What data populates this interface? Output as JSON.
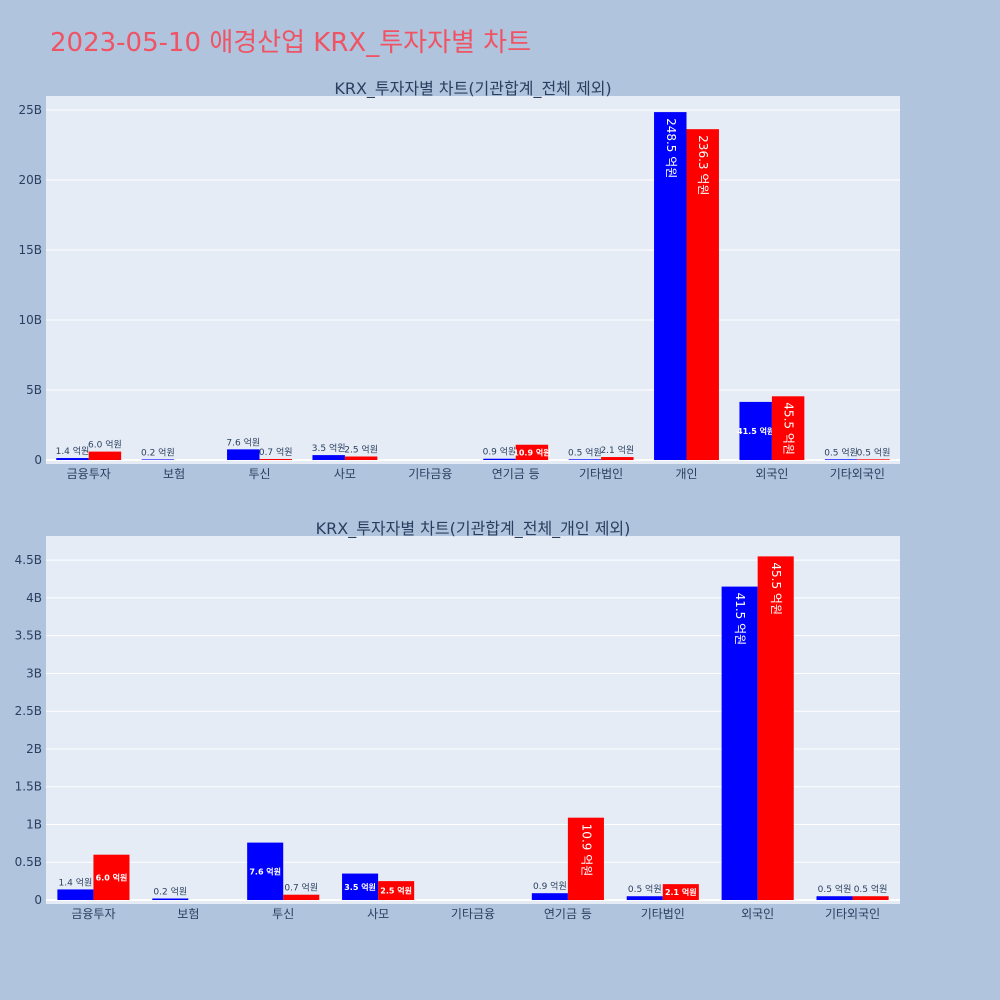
{
  "page_title": "2023-05-10 애경산업 KRX_투자자별 차트",
  "colors": {
    "sell": "#0000ff",
    "buy": "#ff0000",
    "plot_bg": "#e5ecf6",
    "page_bg": "#b0c4de",
    "title": "#ef5364"
  },
  "chart_data": [
    {
      "type": "bar",
      "title": "KRX_투자자별 차트(기관합계_전체 제외)",
      "categories": [
        "금융투자",
        "보험",
        "투신",
        "사모",
        "기타금융",
        "연기금 등",
        "기타법인",
        "개인",
        "외국인",
        "기타외국인"
      ],
      "series": [
        {
          "values": [
            0.14,
            0.02,
            0.76,
            0.35,
            null,
            0.09,
            0.05,
            24.85,
            4.15,
            0.05
          ],
          "labels": [
            "1.4 억원",
            "0.2 억원",
            "7.6 억원",
            "3.5 억원",
            "",
            "0.9 억원",
            "0.5 억원",
            "248.5 억원",
            "41.5 억원",
            "0.5 억원"
          ]
        },
        {
          "values": [
            0.6,
            null,
            0.07,
            0.25,
            null,
            1.09,
            0.21,
            23.63,
            4.55,
            0.05
          ],
          "labels": [
            "6.0 억원",
            "",
            "0.7 억원",
            "2.5 억원",
            "",
            "10.9 억원",
            "2.1 억원",
            "236.3 억원",
            "45.5 억원",
            "0.5 억원"
          ]
        }
      ],
      "yticks": [
        0,
        5,
        10,
        15,
        20,
        25
      ],
      "ytick_labels": [
        "0",
        "5B",
        "10B",
        "15B",
        "20B",
        "25B"
      ],
      "ylim": [
        0,
        26
      ],
      "grid": true
    },
    {
      "type": "bar",
      "title": "KRX_투자자별 차트(기관합계_전체_개인 제외)",
      "categories": [
        "금융투자",
        "보험",
        "투신",
        "사모",
        "기타금융",
        "연기금 등",
        "기타법인",
        "외국인",
        "기타외국인"
      ],
      "series": [
        {
          "values": [
            0.14,
            0.02,
            0.76,
            0.35,
            null,
            0.09,
            0.05,
            4.15,
            0.05
          ],
          "labels": [
            "1.4 억원",
            "0.2 억원",
            "7.6 억원",
            "3.5 억원",
            "",
            "0.9 억원",
            "0.5 억원",
            "41.5 억원",
            "0.5 억원"
          ]
        },
        {
          "values": [
            0.6,
            null,
            0.07,
            0.25,
            null,
            1.09,
            0.21,
            4.55,
            0.05
          ],
          "labels": [
            "6.0 억원",
            "",
            "0.7 억원",
            "2.5 억원",
            "",
            "10.9 억원",
            "2.1 억원",
            "45.5 억원",
            "0.5 억원"
          ]
        }
      ],
      "yticks": [
        0,
        0.5,
        1,
        1.5,
        2,
        2.5,
        3,
        3.5,
        4,
        4.5
      ],
      "ytick_labels": [
        "0",
        "0.5B",
        "1B",
        "1.5B",
        "2B",
        "2.5B",
        "3B",
        "3.5B",
        "4B",
        "4.5B"
      ],
      "ylim": [
        0,
        4.82
      ],
      "grid": true
    }
  ]
}
